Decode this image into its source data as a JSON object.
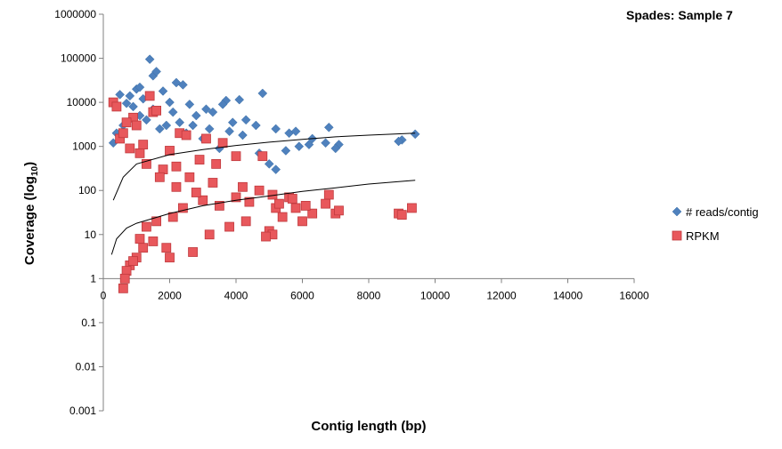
{
  "chart_data": {
    "type": "scatter",
    "title": "Spades: Sample 7",
    "xlabel": "Contig length (bp)",
    "ylabel": "Coverage (log",
    "ylabel_sub": "10",
    "ylabel_close": ")",
    "y_scale": "log",
    "xlim": [
      0,
      16000
    ],
    "ylim": [
      0.001,
      1000000
    ],
    "x_ticks": [
      0,
      2000,
      4000,
      6000,
      8000,
      10000,
      12000,
      14000,
      16000
    ],
    "y_ticks": [
      0.001,
      0.01,
      0.1,
      1,
      10,
      100,
      1000,
      10000,
      100000,
      1000000
    ],
    "x_tick_labels": [
      "0",
      "2000",
      "4000",
      "6000",
      "8000",
      "10000",
      "12000",
      "14000",
      "16000"
    ],
    "y_tick_labels": [
      "0.001",
      "0.01",
      "0.1",
      "1",
      "10",
      "100",
      "1000",
      "10000",
      "100000",
      "1000000"
    ],
    "grid": false,
    "legend_position": "right",
    "series": [
      {
        "name": "# reads/contig",
        "color": "#4f81bd",
        "marker": "diamond",
        "points": [
          [
            1400,
            95000
          ],
          [
            1500,
            40000
          ],
          [
            1600,
            50000
          ],
          [
            2400,
            25000
          ],
          [
            1000,
            20000
          ],
          [
            1100,
            22000
          ],
          [
            2200,
            28000
          ],
          [
            500,
            15000
          ],
          [
            800,
            14000
          ],
          [
            1800,
            18000
          ],
          [
            3700,
            11000
          ],
          [
            4100,
            11500
          ],
          [
            4800,
            16000
          ],
          [
            2600,
            9000
          ],
          [
            3100,
            7000
          ],
          [
            3300,
            6000
          ],
          [
            2000,
            10000
          ],
          [
            1200,
            12000
          ],
          [
            900,
            8000
          ],
          [
            700,
            9500
          ],
          [
            3600,
            9000
          ],
          [
            4300,
            4000
          ],
          [
            2800,
            5000
          ],
          [
            3900,
            3500
          ],
          [
            4600,
            3000
          ],
          [
            5200,
            2500
          ],
          [
            5600,
            2000
          ],
          [
            5800,
            2200
          ],
          [
            6800,
            2700
          ],
          [
            7100,
            1100
          ],
          [
            9000,
            1400
          ],
          [
            9400,
            1900
          ],
          [
            6200,
            1100
          ],
          [
            6700,
            1200
          ],
          [
            7000,
            900
          ],
          [
            5000,
            400
          ],
          [
            5200,
            300
          ],
          [
            4700,
            700
          ],
          [
            4000,
            600
          ],
          [
            3500,
            900
          ],
          [
            3000,
            1500
          ],
          [
            2500,
            2000
          ],
          [
            1900,
            3000
          ],
          [
            1700,
            2500
          ],
          [
            1300,
            4000
          ],
          [
            600,
            3000
          ],
          [
            400,
            2000
          ],
          [
            300,
            1200
          ],
          [
            8900,
            1300
          ],
          [
            5500,
            800
          ],
          [
            6300,
            1500
          ],
          [
            5900,
            1000
          ],
          [
            4200,
            1800
          ],
          [
            3800,
            2200
          ],
          [
            3200,
            2500
          ],
          [
            2700,
            3000
          ],
          [
            2300,
            3500
          ],
          [
            2100,
            6000
          ],
          [
            1500,
            7000
          ],
          [
            1100,
            5000
          ]
        ]
      },
      {
        "name": "RPKM",
        "color": "#e8585c",
        "marker": "square",
        "points": [
          [
            1400,
            14000
          ],
          [
            300,
            10000
          ],
          [
            400,
            8000
          ],
          [
            1500,
            6000
          ],
          [
            1600,
            6500
          ],
          [
            900,
            4500
          ],
          [
            700,
            3500
          ],
          [
            1000,
            3000
          ],
          [
            2300,
            2000
          ],
          [
            2500,
            1800
          ],
          [
            3100,
            1500
          ],
          [
            3600,
            1200
          ],
          [
            4000,
            600
          ],
          [
            4800,
            600
          ],
          [
            2900,
            500
          ],
          [
            3400,
            400
          ],
          [
            2200,
            350
          ],
          [
            1800,
            300
          ],
          [
            2600,
            200
          ],
          [
            3300,
            150
          ],
          [
            4200,
            120
          ],
          [
            4700,
            100
          ],
          [
            5100,
            80
          ],
          [
            5600,
            70
          ],
          [
            6800,
            80
          ],
          [
            6700,
            50
          ],
          [
            7000,
            30
          ],
          [
            7100,
            35
          ],
          [
            6300,
            30
          ],
          [
            5800,
            40
          ],
          [
            5200,
            40
          ],
          [
            5000,
            12
          ],
          [
            5100,
            10
          ],
          [
            4900,
            9
          ],
          [
            9300,
            40
          ],
          [
            8900,
            30
          ],
          [
            9000,
            28
          ],
          [
            6000,
            20
          ],
          [
            5400,
            25
          ],
          [
            4300,
            20
          ],
          [
            3800,
            15
          ],
          [
            3200,
            10
          ],
          [
            2700,
            4
          ],
          [
            2000,
            3
          ],
          [
            1900,
            5
          ],
          [
            1500,
            7
          ],
          [
            1200,
            5
          ],
          [
            1000,
            3
          ],
          [
            800,
            2
          ],
          [
            700,
            1.5
          ],
          [
            600,
            0.6
          ],
          [
            650,
            1.0
          ],
          [
            900,
            2.5
          ],
          [
            1100,
            8
          ],
          [
            1300,
            15
          ],
          [
            1600,
            20
          ],
          [
            2100,
            25
          ],
          [
            2400,
            40
          ],
          [
            3000,
            60
          ],
          [
            3500,
            45
          ],
          [
            4000,
            70
          ],
          [
            4400,
            55
          ],
          [
            5300,
            50
          ],
          [
            5700,
            65
          ],
          [
            6100,
            45
          ],
          [
            2800,
            90
          ],
          [
            2200,
            120
          ],
          [
            1700,
            200
          ],
          [
            1300,
            400
          ],
          [
            1100,
            700
          ],
          [
            800,
            900
          ],
          [
            500,
            1500
          ],
          [
            600,
            2000
          ],
          [
            1200,
            1100
          ],
          [
            2000,
            800
          ]
        ]
      }
    ],
    "trendlines": [
      {
        "series": "# reads/contig",
        "points": [
          [
            300,
            60
          ],
          [
            600,
            200
          ],
          [
            1000,
            400
          ],
          [
            2000,
            650
          ],
          [
            3000,
            850
          ],
          [
            4000,
            1050
          ],
          [
            5000,
            1250
          ],
          [
            6000,
            1450
          ],
          [
            7000,
            1650
          ],
          [
            8000,
            1800
          ],
          [
            9400,
            2000
          ]
        ]
      },
      {
        "series": "RPKM",
        "points": [
          [
            250,
            3.5
          ],
          [
            400,
            8
          ],
          [
            700,
            14
          ],
          [
            1000,
            18
          ],
          [
            2000,
            30
          ],
          [
            3000,
            45
          ],
          [
            4000,
            60
          ],
          [
            5000,
            75
          ],
          [
            6000,
            95
          ],
          [
            7000,
            115
          ],
          [
            8000,
            140
          ],
          [
            9400,
            170
          ]
        ]
      }
    ]
  }
}
